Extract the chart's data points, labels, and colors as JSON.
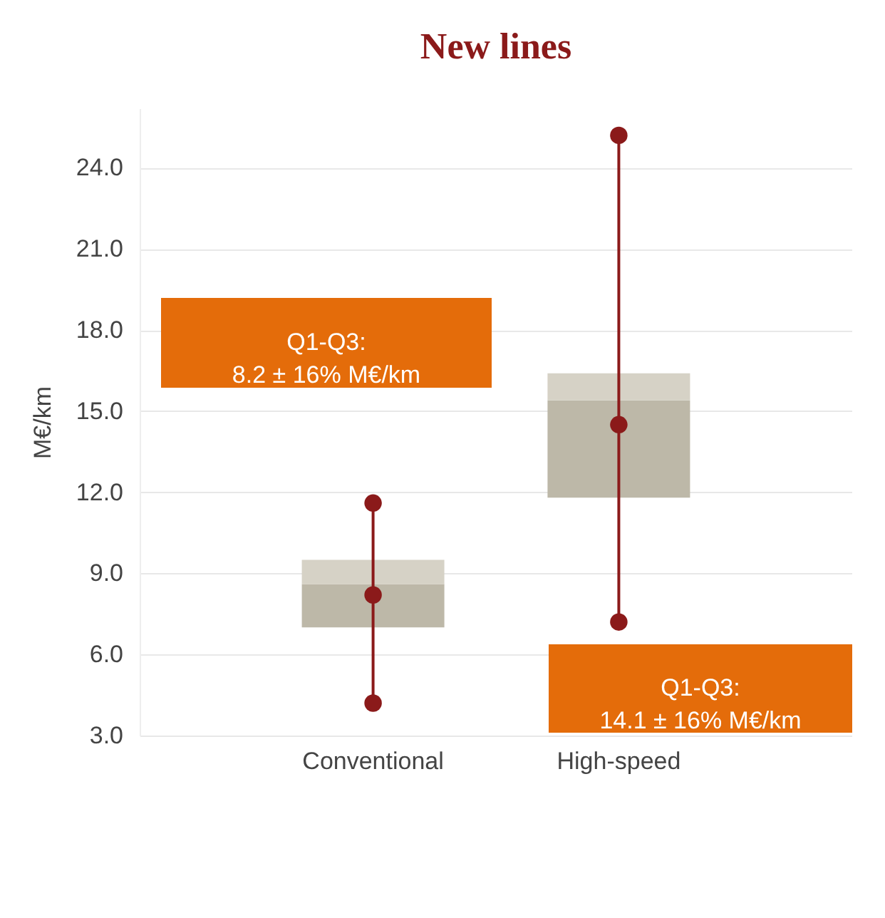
{
  "chart_data": {
    "type": "box",
    "title": "New lines",
    "ylabel": "M€/km",
    "categories": [
      "Conventional",
      "High-speed"
    ],
    "series": [
      {
        "color": "#bdb8a8",
        "boxes": [
          {
            "low": 4.2,
            "q1": 7.0,
            "median": 8.6,
            "q3": 9.5,
            "high": 11.6
          },
          {
            "low": 7.2,
            "q1": 11.8,
            "median": 15.4,
            "q3": 16.4,
            "high": 25.2
          }
        ]
      },
      {
        "type": "scatter",
        "color": "#8b1a1a",
        "x": [
          "Conventional",
          "Conventional",
          "Conventional",
          "High-speed",
          "High-speed",
          "High-speed"
        ],
        "values": [
          4.2,
          8.2,
          11.6,
          7.2,
          14.5,
          25.2
        ]
      }
    ],
    "ylim": [
      3,
      26.2
    ],
    "yticks": [
      {
        "value": 3,
        "label": "3.0"
      },
      {
        "value": 6,
        "label": "6.0"
      },
      {
        "value": 9,
        "label": "9.0"
      },
      {
        "value": 12,
        "label": "12.0"
      },
      {
        "value": 15,
        "label": "15.0"
      },
      {
        "value": 18,
        "label": "18.0"
      },
      {
        "value": 21,
        "label": "21.0"
      },
      {
        "value": 24,
        "label": "24.0"
      }
    ],
    "grid": "y",
    "marker": "circle",
    "annotations": [
      "Q1-Q3:\n8.2 ± 16% M€/km",
      "Q1-Q3:\n14.1 ± 16% M€/km"
    ]
  }
}
